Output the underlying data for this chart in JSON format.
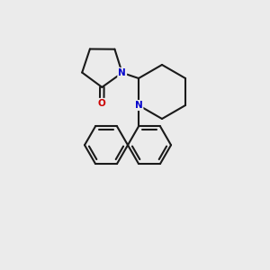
{
  "bg_color": "#ebebeb",
  "bond_color": "#1a1a1a",
  "N_color": "#0000cc",
  "O_color": "#cc0000",
  "lw": 1.5,
  "fs": 7.5,
  "figsize": [
    3.0,
    3.0
  ],
  "dpi": 100,
  "xlim": [
    0,
    10
  ],
  "ylim": [
    0,
    10
  ]
}
